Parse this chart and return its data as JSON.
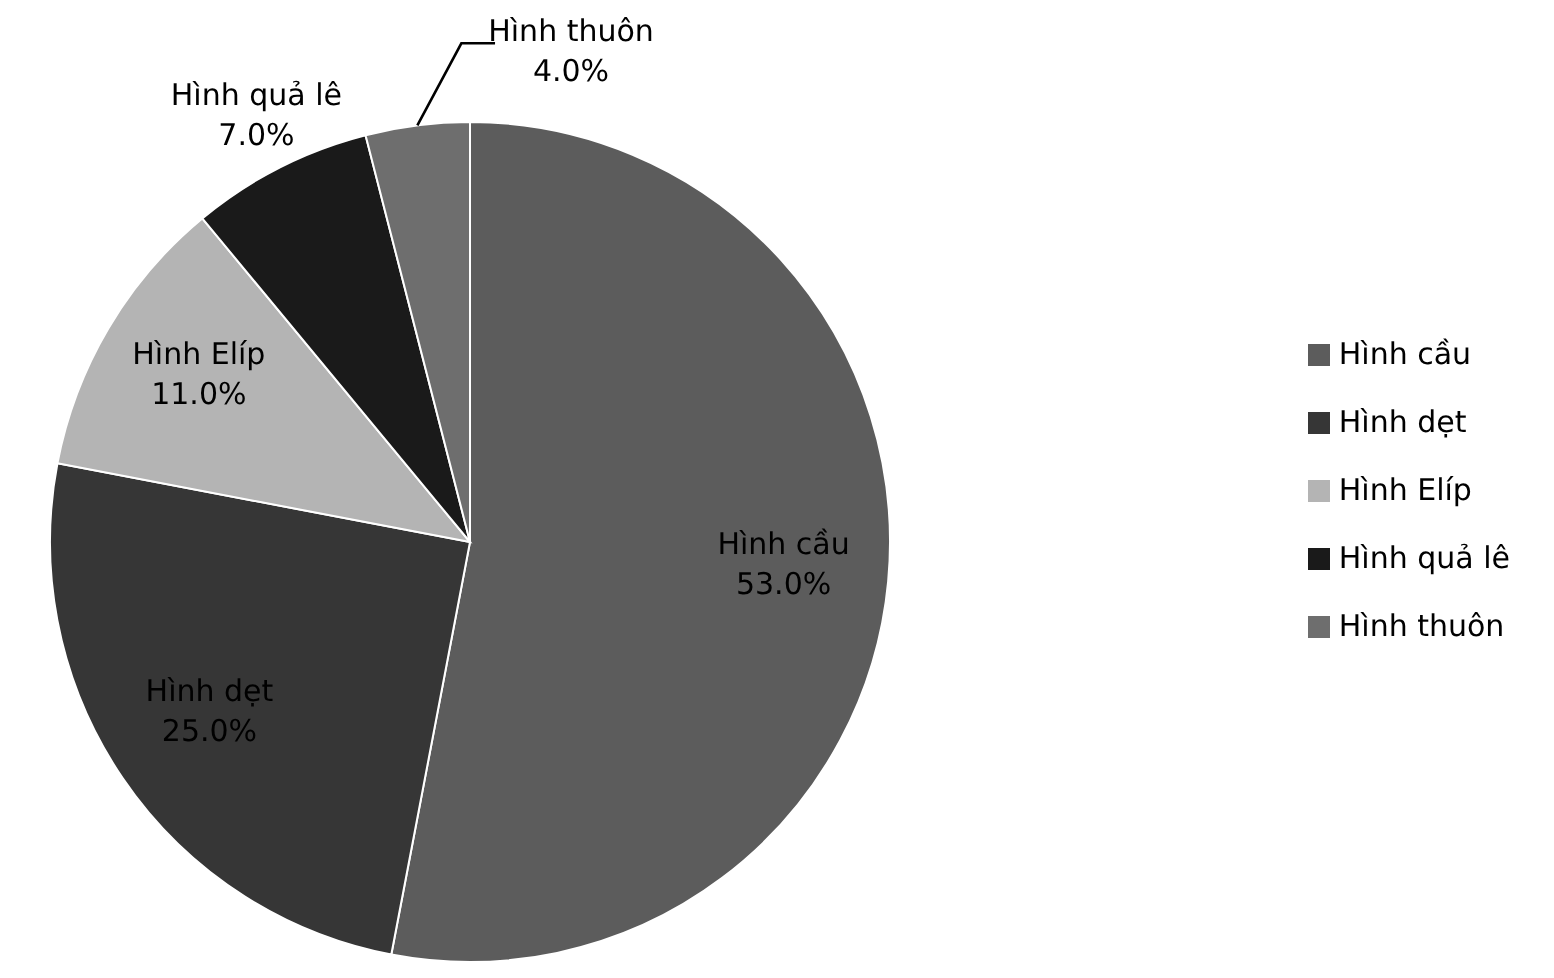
{
  "chart_data": {
    "type": "pie",
    "categories": [
      "Hình cầu",
      "Hình dẹt",
      "Hình Elíp",
      "Hình quả lê",
      "Hình thuôn"
    ],
    "values": [
      53,
      25,
      11,
      7,
      4
    ],
    "colors": [
      "#5c5c5c",
      "#363636",
      "#b4b4b4",
      "#1a1a1a",
      "#6e6e6e"
    ],
    "value_labels": [
      "53.0%",
      "25.0%",
      "11.0%",
      "7.0%",
      "4.0%"
    ],
    "legend": "right"
  }
}
